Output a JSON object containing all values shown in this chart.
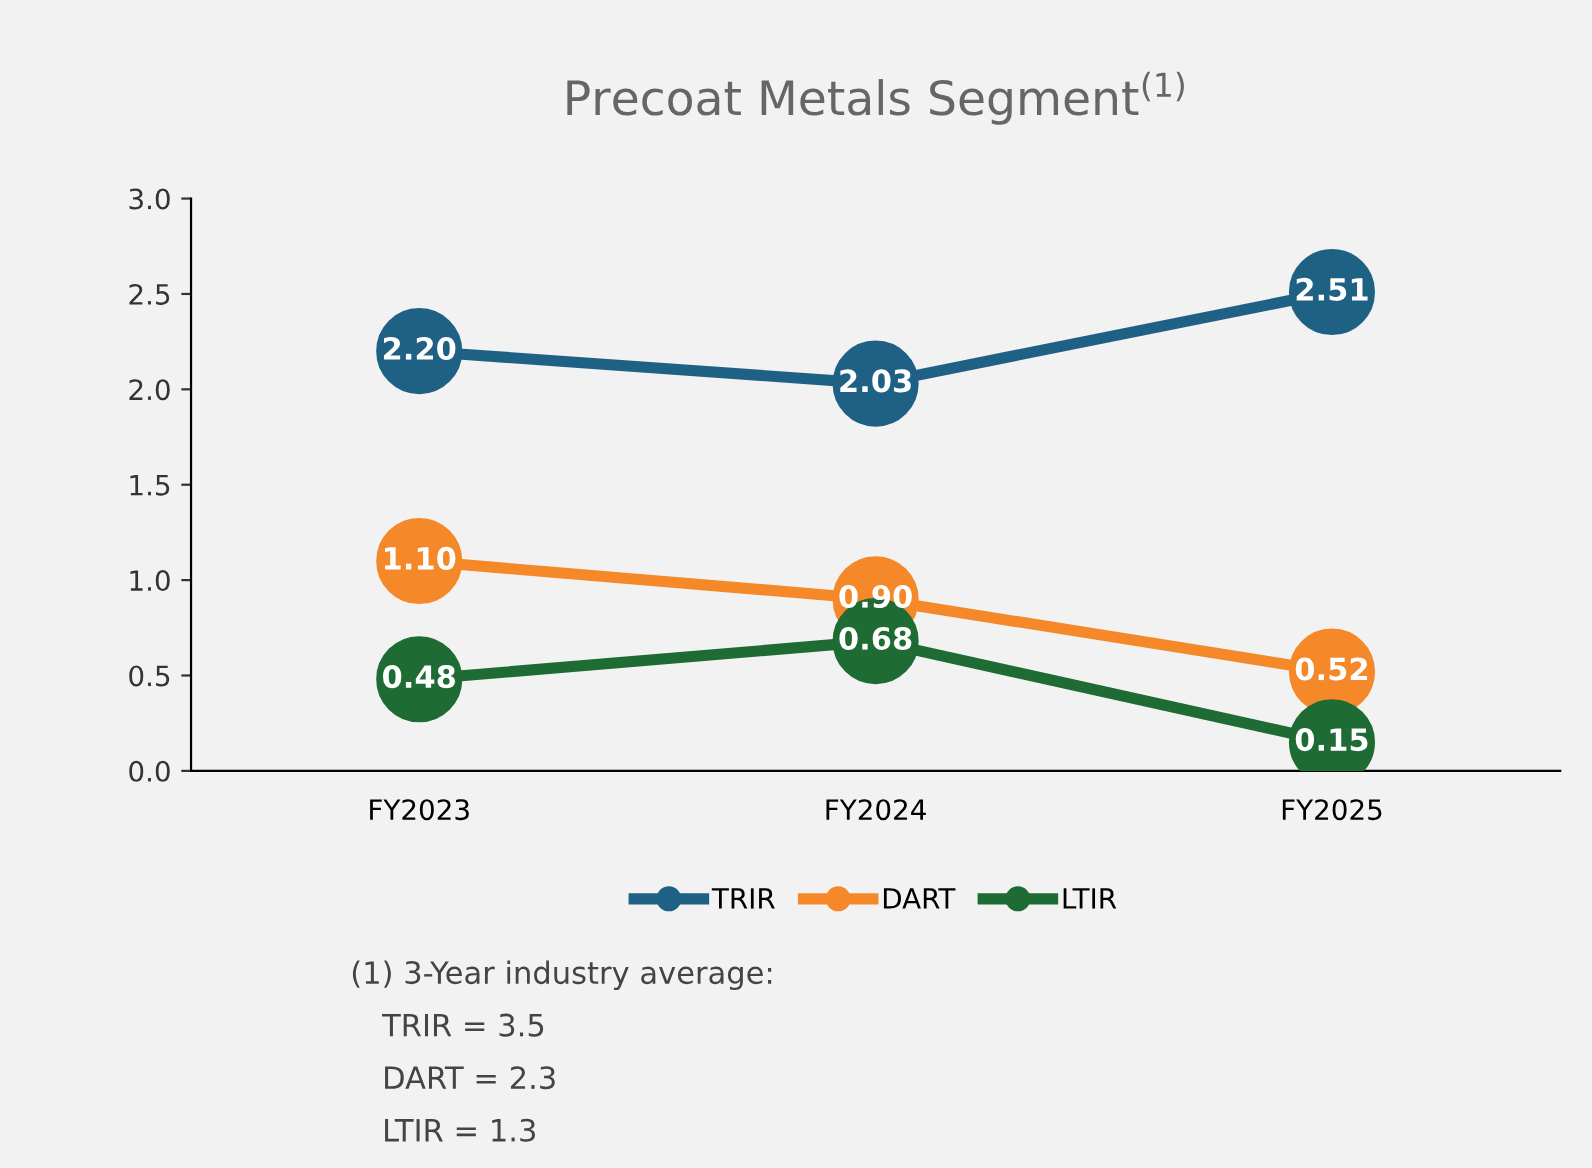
{
  "chart_data": {
    "type": "line",
    "title": "Precoat Metals Segment$^{(1)}$",
    "categories": [
      "FY2023",
      "FY2024",
      "FY2025"
    ],
    "series": [
      {
        "name": "TRIR",
        "color": "#1f6185",
        "values": [
          2.2,
          2.03,
          2.51
        ],
        "value_labels": [
          "2.20",
          "2.03",
          "2.51"
        ]
      },
      {
        "name": "DART",
        "color": "#f5892a",
        "values": [
          1.1,
          0.9,
          0.52
        ],
        "value_labels": [
          "1.10",
          "0.90",
          "0.52"
        ]
      },
      {
        "name": "LTIR",
        "color": "#1e6b34",
        "values": [
          0.48,
          0.68,
          0.15
        ],
        "value_labels": [
          "0.48",
          "0.68",
          "0.15"
        ]
      }
    ],
    "ylim": [
      0,
      3.0
    ],
    "yticks": [
      {
        "value": 0,
        "label": "0.0"
      },
      {
        "value": 0.5,
        "label": "0.5"
      },
      {
        "value": 1.0,
        "label": "1.0"
      },
      {
        "value": 1.5,
        "label": "1.5"
      },
      {
        "value": 2.0,
        "label": "2.0"
      },
      {
        "value": 2.5,
        "label": "2.5"
      },
      {
        "value": 3.0,
        "label": "3.0"
      }
    ],
    "marker": "circle",
    "line_style": "solid",
    "grid": false,
    "legend": "bottom",
    "annotations": [
      "(1) 3-Year industry average:",
      "TRIR = 3.5",
      "DART = 2.3",
      "LTIR = 1.3"
    ]
  }
}
